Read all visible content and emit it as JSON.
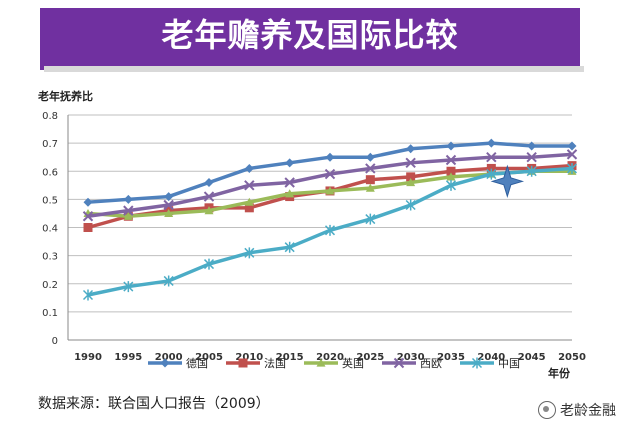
{
  "banner": {
    "title": "老年赡养及国际比较"
  },
  "source": "数据来源：联合国人口报告（2009）",
  "watermark": "老龄金融",
  "chart_data": {
    "type": "line",
    "title": "",
    "ylabel": "老年抚养比",
    "xlabel": "年份",
    "ylim": [
      0,
      0.8
    ],
    "yticks": [
      "0",
      "0.1",
      "0.2",
      "0.3",
      "0.4",
      "0.5",
      "0.6",
      "0.7",
      "0.8"
    ],
    "grid": true,
    "legend": "bottom",
    "categories": [
      "1990",
      "1995",
      "2000",
      "2005",
      "2010",
      "2015",
      "2020",
      "2025",
      "2030",
      "2035",
      "2040",
      "2045",
      "2050"
    ],
    "series": [
      {
        "name": "德国",
        "color": "#4f81bd",
        "marker": "diamond",
        "values": [
          0.49,
          0.5,
          0.51,
          0.56,
          0.61,
          0.63,
          0.65,
          0.65,
          0.68,
          0.69,
          0.7,
          0.69,
          0.69
        ]
      },
      {
        "name": "法国",
        "color": "#c0504d",
        "marker": "square",
        "values": [
          0.4,
          0.44,
          0.46,
          0.47,
          0.47,
          0.51,
          0.53,
          0.57,
          0.58,
          0.6,
          0.61,
          0.61,
          0.62
        ]
      },
      {
        "name": "英国",
        "color": "#9bbb59",
        "marker": "triangle",
        "values": [
          0.45,
          0.44,
          0.45,
          0.46,
          0.49,
          0.52,
          0.53,
          0.54,
          0.56,
          0.58,
          0.59,
          0.6,
          0.6
        ]
      },
      {
        "name": "西欧",
        "color": "#8064a2",
        "marker": "x",
        "values": [
          0.44,
          0.46,
          0.48,
          0.51,
          0.55,
          0.56,
          0.59,
          0.61,
          0.63,
          0.64,
          0.65,
          0.65,
          0.66
        ]
      },
      {
        "name": "中国",
        "color": "#4bacc6",
        "marker": "star",
        "values": [
          0.16,
          0.19,
          0.21,
          0.27,
          0.31,
          0.33,
          0.39,
          0.43,
          0.48,
          0.55,
          0.59,
          0.6,
          0.61
        ]
      }
    ],
    "annotation": {
      "shape": "four-point-star",
      "color": "#4f81bd",
      "x": "2040",
      "y": 0.55
    }
  }
}
